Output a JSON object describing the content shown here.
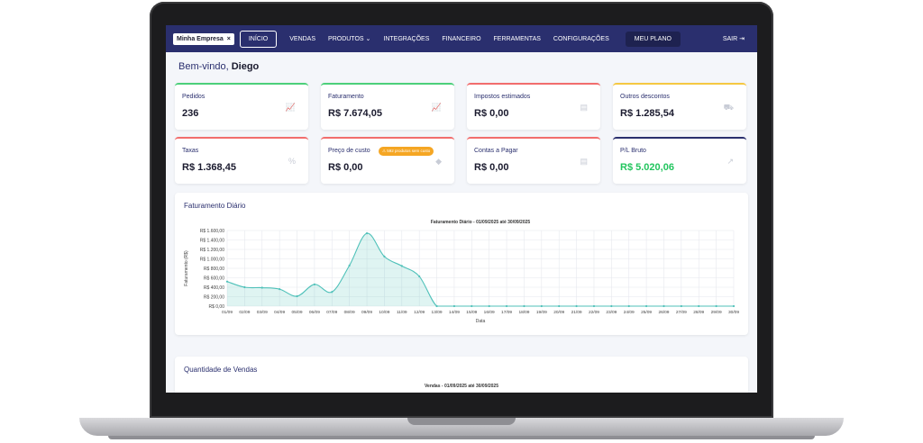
{
  "nav": {
    "brand": "Minha Empresa",
    "brand_close": "×",
    "items": [
      "INÍCIO",
      "VENDAS",
      "PRODUTOS",
      "INTEGRAÇÕES",
      "FINANCEIRO",
      "FERRAMENTAS",
      "CONFIGURAÇÕES"
    ],
    "produtos_caret": "⌄",
    "plan": "MEU PLANO",
    "exit": "SAIR",
    "exit_icon": "⇥"
  },
  "welcome": {
    "prefix": "Bem-vindo,",
    "name": "Diego"
  },
  "cards": [
    {
      "label": "Pedidos",
      "value": "236",
      "accent": "#4cd07a",
      "icon": "chart-line-icon",
      "glyph": "📈"
    },
    {
      "label": "Faturamento",
      "value": "R$ 7.674,05",
      "accent": "#4cd07a",
      "icon": "chart-line-icon",
      "glyph": "📈"
    },
    {
      "label": "Impostos estimados",
      "value": "R$ 0,00",
      "accent": "#f26d6d",
      "icon": "document-icon",
      "glyph": "▤"
    },
    {
      "label": "Outros descontos",
      "value": "R$ 1.285,54",
      "accent": "#f5c842",
      "icon": "truck-icon",
      "glyph": "⛟"
    },
    {
      "label": "Taxas",
      "value": "R$ 1.368,45",
      "accent": "#f26d6d",
      "icon": "percent-icon",
      "glyph": "%"
    },
    {
      "label": "Preço de custo",
      "value": "R$ 0,00",
      "accent": "#f26d6d",
      "icon": "tag-icon",
      "glyph": "◆",
      "badge": "⚠ 592 produtos sem custo"
    },
    {
      "label": "Contas a Pagar",
      "value": "R$ 0,00",
      "accent": "#f26d6d",
      "icon": "document-icon",
      "glyph": "▤"
    },
    {
      "label": "P/L Bruto",
      "value": "R$ 5.020,06",
      "accent": "#2a2f6e",
      "icon": "trend-up-icon",
      "glyph": "↗",
      "value_color": "#22c55e"
    }
  ],
  "daily_panel": {
    "title": "Faturamento Diário"
  },
  "sales_panel": {
    "title": "Quantidade de Vendas",
    "chart_title": "Vendas - 01/09/2025 até 30/09/2025"
  },
  "chart_data": {
    "type": "area",
    "title": "Faturamento Diário - 01/09/2025 até 30/09/2025",
    "xlabel": "Data",
    "ylabel": "Faturamento (R$)",
    "ylim": [
      0,
      1600
    ],
    "yticks": [
      "R$ 0,00",
      "R$ 200,00",
      "R$ 400,00",
      "R$ 600,00",
      "R$ 800,00",
      "R$ 1.000,00",
      "R$ 1.200,00",
      "R$ 1.400,00",
      "R$ 1.600,00"
    ],
    "categories": [
      "01/09",
      "02/09",
      "03/09",
      "04/09",
      "05/09",
      "06/09",
      "07/09",
      "08/09",
      "09/09",
      "10/09",
      "11/09",
      "12/09",
      "13/09",
      "14/09",
      "15/09",
      "16/09",
      "17/09",
      "18/09",
      "19/09",
      "20/09",
      "21/09",
      "22/09",
      "23/09",
      "24/09",
      "25/09",
      "26/09",
      "27/09",
      "28/09",
      "29/09",
      "30/09"
    ],
    "values": [
      520,
      400,
      390,
      360,
      210,
      460,
      300,
      860,
      1540,
      1050,
      850,
      630,
      0,
      0,
      0,
      0,
      0,
      0,
      0,
      0,
      0,
      0,
      0,
      0,
      0,
      0,
      0,
      0,
      0,
      0
    ],
    "grid": true,
    "color": "#4fc1b9"
  }
}
